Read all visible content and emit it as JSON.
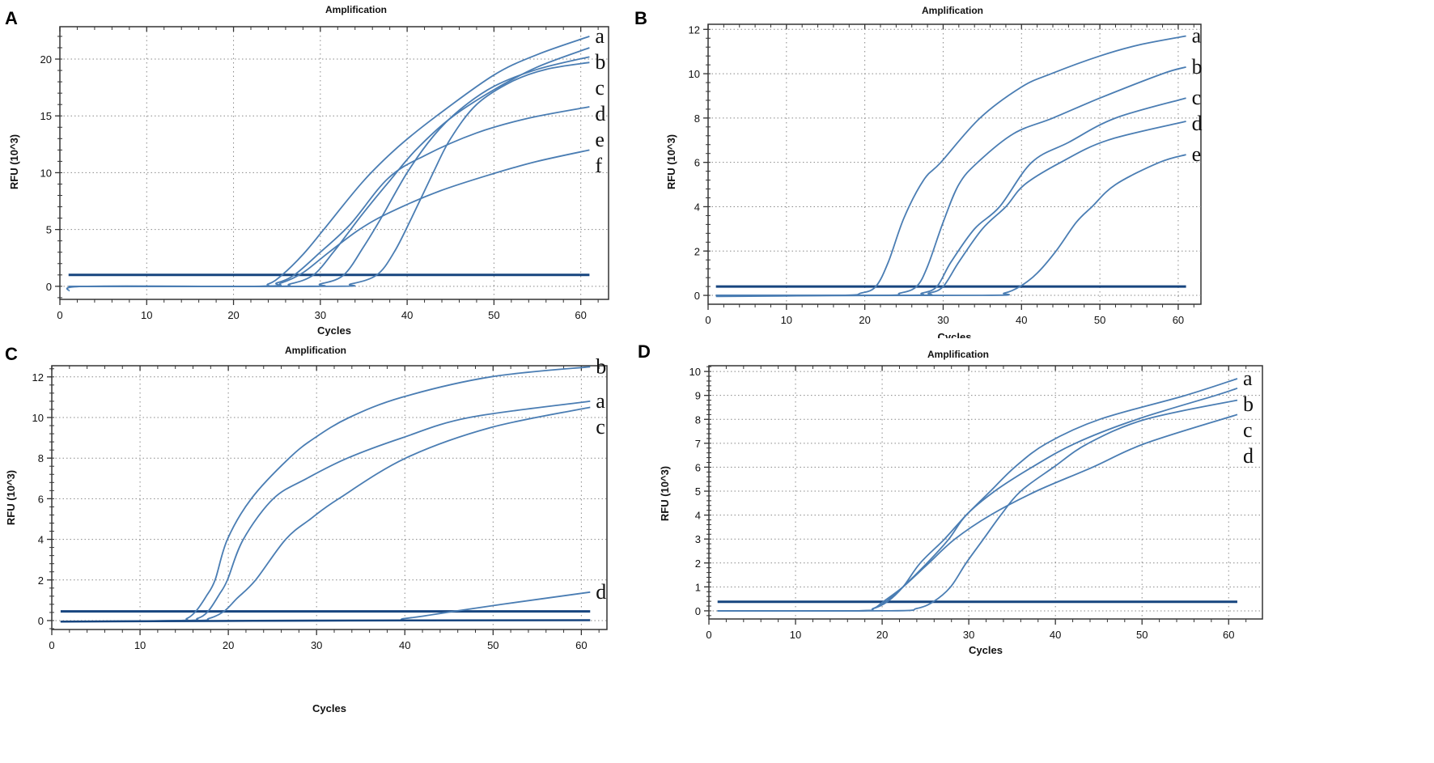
{
  "colors": {
    "curve": "#4a7db3",
    "threshold": "#17457f",
    "axis": "#333333",
    "grid": "#888888"
  },
  "chart_data": [
    {
      "panel": "A",
      "type": "line",
      "title": "Amplification",
      "xlabel": "Cycles",
      "ylabel": "RFU (10^3)",
      "xlim": [
        0,
        63.2
      ],
      "ylim": [
        -1.15,
        22.85
      ],
      "xticks": [
        "0",
        "10",
        "20",
        "30",
        "40",
        "50",
        "60"
      ],
      "yticks": [
        "0",
        "5",
        "10",
        "15",
        "20"
      ],
      "threshold": 1,
      "grid": true,
      "series": [
        {
          "name": "a",
          "points": [
            [
              1,
              -0.4
            ],
            [
              3,
              0
            ],
            [
              22,
              0
            ],
            [
              24,
              0.2
            ],
            [
              25.6,
              1
            ],
            [
              28,
              2.8
            ],
            [
              30.4,
              5
            ],
            [
              35,
              9.3
            ],
            [
              39,
              12.3
            ],
            [
              43.4,
              15
            ],
            [
              50,
              18.6
            ],
            [
              55,
              20.4
            ],
            [
              61,
              22
            ]
          ]
        },
        {
          "name": "b",
          "points": [
            [
              1,
              0
            ],
            [
              24,
              0
            ],
            [
              26.5,
              0.2
            ],
            [
              29.2,
              1
            ],
            [
              31.5,
              3
            ],
            [
              33,
              4.5
            ],
            [
              35,
              6.5
            ],
            [
              38,
              9.3
            ],
            [
              41,
              12
            ],
            [
              45,
              14.8
            ],
            [
              50,
              17.3
            ],
            [
              55,
              19.3
            ],
            [
              61,
              21
            ]
          ]
        },
        {
          "name": "c",
          "points": [
            [
              1,
              0
            ],
            [
              28,
              0
            ],
            [
              30,
              0.2
            ],
            [
              32.7,
              1
            ],
            [
              35,
              3.5
            ],
            [
              37,
              6
            ],
            [
              40,
              10
            ],
            [
              43,
              13.2
            ],
            [
              46,
              15.5
            ],
            [
              50,
              17.6
            ],
            [
              55,
              19.1
            ],
            [
              61,
              20.2
            ]
          ]
        },
        {
          "name": "d",
          "points": [
            [
              1,
              0
            ],
            [
              31,
              0
            ],
            [
              33.5,
              0.2
            ],
            [
              36.5,
              1
            ],
            [
              38.5,
              3
            ],
            [
              40.5,
              6
            ],
            [
              43,
              10
            ],
            [
              45,
              13
            ],
            [
              48,
              16
            ],
            [
              52,
              18
            ],
            [
              56,
              19.1
            ],
            [
              61,
              19.7
            ]
          ]
        },
        {
          "name": "e",
          "points": [
            [
              1,
              0
            ],
            [
              23,
              0
            ],
            [
              25,
              0.3
            ],
            [
              27,
              1
            ],
            [
              30,
              3
            ],
            [
              33.5,
              5.5
            ],
            [
              37.8,
              9.5
            ],
            [
              42,
              11.5
            ],
            [
              48,
              13.5
            ],
            [
              54,
              14.8
            ],
            [
              61,
              15.8
            ]
          ]
        },
        {
          "name": "f",
          "points": [
            [
              1,
              0
            ],
            [
              23,
              0
            ],
            [
              25.5,
              0.3
            ],
            [
              28,
              1.2
            ],
            [
              31,
              3
            ],
            [
              34.5,
              5
            ],
            [
              38,
              6.5
            ],
            [
              43.8,
              8.4
            ],
            [
              50.3,
              10
            ],
            [
              55,
              11
            ],
            [
              61,
              12
            ]
          ]
        }
      ]
    },
    {
      "panel": "B",
      "type": "line",
      "title": "Amplification",
      "xlabel": "Cycles",
      "ylabel": "RFU (10^3)",
      "xlim": [
        0,
        62.9
      ],
      "ylim": [
        -0.4,
        12.23
      ],
      "xticks": [
        "0",
        "10",
        "20",
        "30",
        "40",
        "50",
        "60"
      ],
      "yticks": [
        "0",
        "2",
        "4",
        "6",
        "8",
        "10",
        "12"
      ],
      "threshold": 0.4,
      "grid": true,
      "series": [
        {
          "name": "a",
          "points": [
            [
              1,
              -0.05
            ],
            [
              17,
              0
            ],
            [
              19.5,
              0.1
            ],
            [
              21.4,
              0.4
            ],
            [
              23,
              1.5
            ],
            [
              25,
              3.5
            ],
            [
              27.5,
              5.2
            ],
            [
              29.7,
              6
            ],
            [
              34.7,
              8
            ],
            [
              40,
              9.4
            ],
            [
              43.8,
              10
            ],
            [
              50,
              10.8
            ],
            [
              55,
              11.3
            ],
            [
              61,
              11.7
            ]
          ]
        },
        {
          "name": "b",
          "points": [
            [
              1,
              0
            ],
            [
              22,
              0
            ],
            [
              24.5,
              0.1
            ],
            [
              26.6,
              0.4
            ],
            [
              28,
              1.3
            ],
            [
              30,
              3.3
            ],
            [
              32,
              5
            ],
            [
              34.4,
              6
            ],
            [
              39,
              7.3
            ],
            [
              44,
              8
            ],
            [
              50,
              8.9
            ],
            [
              58,
              10
            ],
            [
              61,
              10.3
            ]
          ]
        },
        {
          "name": "c",
          "points": [
            [
              1,
              0
            ],
            [
              25,
              0
            ],
            [
              27.3,
              0.1
            ],
            [
              29.2,
              0.4
            ],
            [
              31,
              1.5
            ],
            [
              34,
              3
            ],
            [
              37.2,
              4
            ],
            [
              41.3,
              6
            ],
            [
              46,
              6.9
            ],
            [
              52,
              8
            ],
            [
              61,
              8.9
            ]
          ]
        },
        {
          "name": "d",
          "points": [
            [
              1,
              0
            ],
            [
              26,
              0
            ],
            [
              28.2,
              0.1
            ],
            [
              30,
              0.4
            ],
            [
              32,
              1.5
            ],
            [
              35,
              3
            ],
            [
              38,
              4
            ],
            [
              40.4,
              5
            ],
            [
              45,
              6
            ],
            [
              51,
              7
            ],
            [
              61,
              7.85
            ]
          ]
        },
        {
          "name": "e",
          "points": [
            [
              1,
              0
            ],
            [
              35,
              0
            ],
            [
              37.8,
              0.1
            ],
            [
              39.8,
              0.4
            ],
            [
              42,
              1
            ],
            [
              44.4,
              2
            ],
            [
              47,
              3.3
            ],
            [
              49,
              4
            ],
            [
              52,
              5
            ],
            [
              57.6,
              6
            ],
            [
              61,
              6.35
            ]
          ]
        }
      ]
    },
    {
      "panel": "C",
      "type": "line",
      "title": "Amplification",
      "xlabel": "Cycles",
      "ylabel": "RFU (10^3)",
      "xlim": [
        0,
        62.9
      ],
      "ylim": [
        -0.44,
        12.55
      ],
      "xticks": [
        "0",
        "10",
        "20",
        "30",
        "40",
        "50",
        "60"
      ],
      "yticks": [
        "0",
        "2",
        "4",
        "6",
        "8",
        "10",
        "12"
      ],
      "threshold": 0.45,
      "grid": true,
      "series": [
        {
          "name": "b",
          "points": [
            [
              1,
              -0.05
            ],
            [
              14,
              0
            ],
            [
              15.3,
              0.1
            ],
            [
              16.3,
              0.45
            ],
            [
              17.5,
              1.2
            ],
            [
              18.5,
              2
            ],
            [
              19.9,
              4
            ],
            [
              22.6,
              6
            ],
            [
              26.9,
              8
            ],
            [
              29.8,
              9
            ],
            [
              33.7,
              10
            ],
            [
              39.7,
              11
            ],
            [
              49.7,
              12
            ],
            [
              61,
              12.5
            ]
          ]
        },
        {
          "name": "a",
          "points": [
            [
              1,
              -0.05
            ],
            [
              15,
              0
            ],
            [
              16.5,
              0.1
            ],
            [
              17.7,
              0.45
            ],
            [
              19,
              1.3
            ],
            [
              19.9,
              2
            ],
            [
              21.7,
              4
            ],
            [
              25.1,
              6
            ],
            [
              28.9,
              7
            ],
            [
              33.5,
              8
            ],
            [
              39.7,
              9
            ],
            [
              47.3,
              10
            ],
            [
              61,
              10.8
            ]
          ]
        },
        {
          "name": "c",
          "points": [
            [
              1,
              -0.05
            ],
            [
              16,
              0
            ],
            [
              17.8,
              0.1
            ],
            [
              19.5,
              0.45
            ],
            [
              21,
              1.1
            ],
            [
              23.1,
              2
            ],
            [
              26.5,
              4
            ],
            [
              29.3,
              5
            ],
            [
              32.5,
              6
            ],
            [
              40.1,
              8
            ],
            [
              49.7,
              9.5
            ],
            [
              61,
              10.5
            ]
          ]
        },
        {
          "name": "d",
          "points": [
            [
              1,
              -0.05
            ],
            [
              36,
              0
            ],
            [
              40,
              0.1
            ],
            [
              45.5,
              0.45
            ],
            [
              51,
              0.8
            ],
            [
              61,
              1.4
            ]
          ]
        },
        {
          "name": "",
          "points": [
            [
              1,
              -0.05
            ],
            [
              30,
              0
            ],
            [
              61,
              0.02
            ]
          ]
        }
      ]
    },
    {
      "panel": "D",
      "type": "line",
      "title": "Amplification",
      "xlabel": "Cycles",
      "ylabel": "RFU (10^3)",
      "xlim": [
        0,
        63.9
      ],
      "ylim": [
        -0.34,
        10.24
      ],
      "xticks": [
        "0",
        "10",
        "20",
        "30",
        "40",
        "50",
        "60"
      ],
      "yticks": [
        "0",
        "1",
        "2",
        "3",
        "4",
        "5",
        "6",
        "7",
        "8",
        "9",
        "10"
      ],
      "threshold": 0.38,
      "grid": true,
      "series": [
        {
          "name": "a",
          "points": [
            [
              1,
              0
            ],
            [
              17,
              0
            ],
            [
              19,
              0.1
            ],
            [
              20.6,
              0.38
            ],
            [
              22.4,
              1
            ],
            [
              24.4,
              2
            ],
            [
              27.2,
              3
            ],
            [
              29.7,
              4
            ],
            [
              32.5,
              5
            ],
            [
              35.3,
              6
            ],
            [
              39,
              7
            ],
            [
              45.1,
              8
            ],
            [
              55,
              9
            ],
            [
              61,
              9.7
            ]
          ]
        },
        {
          "name": "b",
          "points": [
            [
              1,
              0
            ],
            [
              17,
              0
            ],
            [
              19,
              0.1
            ],
            [
              20.4,
              0.38
            ],
            [
              22.4,
              1
            ],
            [
              25.2,
              2
            ],
            [
              27.7,
              3
            ],
            [
              29.7,
              4
            ],
            [
              33,
              5
            ],
            [
              37.3,
              6
            ],
            [
              42.3,
              7
            ],
            [
              49.4,
              8
            ],
            [
              58.5,
              9
            ],
            [
              61,
              9.3
            ]
          ]
        },
        {
          "name": "c",
          "points": [
            [
              1,
              0
            ],
            [
              21,
              0
            ],
            [
              24,
              0.1
            ],
            [
              25.9,
              0.38
            ],
            [
              27.9,
              1
            ],
            [
              29.7,
              2
            ],
            [
              31.7,
              3
            ],
            [
              33.7,
              4
            ],
            [
              36,
              5
            ],
            [
              39.8,
              6
            ],
            [
              43.8,
              7
            ],
            [
              50.4,
              8
            ],
            [
              61,
              8.8
            ]
          ]
        },
        {
          "name": "d",
          "points": [
            [
              1,
              0
            ],
            [
              17,
              0
            ],
            [
              19,
              0.1
            ],
            [
              20.1,
              0.38
            ],
            [
              22.4,
              1
            ],
            [
              25.4,
              2
            ],
            [
              28.4,
              3
            ],
            [
              32.5,
              4
            ],
            [
              37.8,
              5
            ],
            [
              44.3,
              6
            ],
            [
              50.4,
              7
            ],
            [
              61,
              8.2
            ]
          ]
        }
      ]
    }
  ]
}
